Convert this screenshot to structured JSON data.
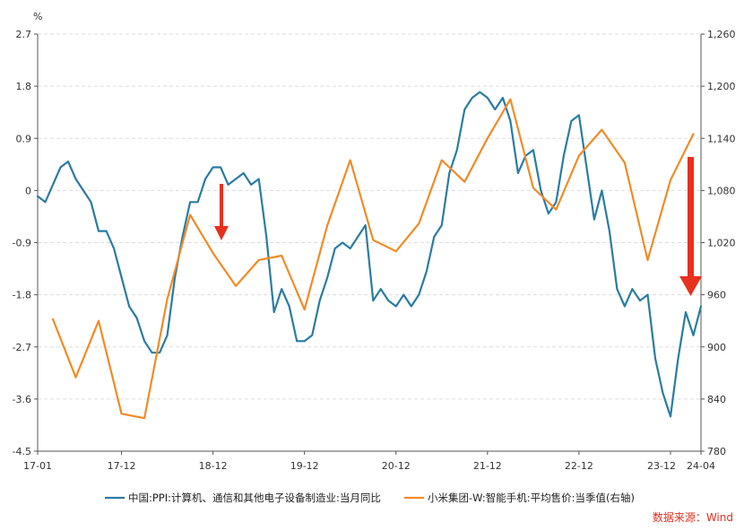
{
  "chart_data": {
    "type": "line",
    "left_unit": "%",
    "source": "数据来源：Wind",
    "x_tick_labels": [
      "17-01",
      "17-12",
      "18-12",
      "19-12",
      "20-12",
      "21-12",
      "22-12",
      "23-12",
      "24-04"
    ],
    "y_left_ticks": [
      "2.7",
      "1.8",
      "0.9",
      "0",
      "-0.9",
      "-1.8",
      "-2.7",
      "-3.6",
      "-4.5"
    ],
    "y_right_ticks": [
      "1,260",
      "1,200",
      "1,140",
      "1,080",
      "1,020",
      "960",
      "900",
      "840",
      "780"
    ],
    "ylim_left": [
      -4.5,
      2.7
    ],
    "ylim_right": [
      780,
      1260
    ],
    "colors": {
      "ppi": "#2a7ca3",
      "xiaomi": "#f18b27",
      "arrow": "#e8301e",
      "grid": "#dddddd",
      "axis": "#555555"
    },
    "series": [
      {
        "name": "中国:PPI:计算机、通信和其他电子设备制造业:当月同比",
        "axis": "left",
        "x": [
          "2017-01",
          "2017-02",
          "2017-03",
          "2017-04",
          "2017-05",
          "2017-06",
          "2017-07",
          "2017-08",
          "2017-09",
          "2017-10",
          "2017-11",
          "2017-12",
          "2018-01",
          "2018-02",
          "2018-03",
          "2018-04",
          "2018-05",
          "2018-06",
          "2018-07",
          "2018-08",
          "2018-09",
          "2018-10",
          "2018-11",
          "2018-12",
          "2019-01",
          "2019-02",
          "2019-03",
          "2019-04",
          "2019-05",
          "2019-06",
          "2019-07",
          "2019-08",
          "2019-09",
          "2019-10",
          "2019-11",
          "2019-12",
          "2020-01",
          "2020-02",
          "2020-03",
          "2020-04",
          "2020-05",
          "2020-06",
          "2020-07",
          "2020-08",
          "2020-09",
          "2020-10",
          "2020-11",
          "2020-12",
          "2021-01",
          "2021-02",
          "2021-03",
          "2021-04",
          "2021-05",
          "2021-06",
          "2021-07",
          "2021-08",
          "2021-09",
          "2021-10",
          "2021-11",
          "2021-12",
          "2022-01",
          "2022-02",
          "2022-03",
          "2022-04",
          "2022-05",
          "2022-06",
          "2022-07",
          "2022-08",
          "2022-09",
          "2022-10",
          "2022-11",
          "2022-12",
          "2023-01",
          "2023-02",
          "2023-03",
          "2023-04",
          "2023-05",
          "2023-06",
          "2023-07",
          "2023-08",
          "2023-09",
          "2023-10",
          "2023-11",
          "2023-12",
          "2024-01",
          "2024-02",
          "2024-03",
          "2024-04"
        ],
        "values": [
          -0.1,
          -0.2,
          0.1,
          0.4,
          0.5,
          0.2,
          0.0,
          -0.2,
          -0.7,
          -0.7,
          -1.0,
          -1.5,
          -2.0,
          -2.2,
          -2.6,
          -2.8,
          -2.8,
          -2.5,
          -1.5,
          -0.8,
          -0.2,
          -0.2,
          0.2,
          0.4,
          0.4,
          0.1,
          0.2,
          0.3,
          0.1,
          0.2,
          -0.8,
          -2.1,
          -1.7,
          -2.0,
          -2.6,
          -2.6,
          -2.5,
          -1.9,
          -1.5,
          -1.0,
          -0.9,
          -1.0,
          -0.8,
          -0.6,
          -1.9,
          -1.7,
          -1.9,
          -2.0,
          -1.8,
          -2.0,
          -1.8,
          -1.4,
          -0.8,
          -0.6,
          0.3,
          0.7,
          1.4,
          1.6,
          1.7,
          1.6,
          1.4,
          1.6,
          1.2,
          0.3,
          0.6,
          0.7,
          0.0,
          -0.4,
          -0.2,
          0.6,
          1.2,
          1.3,
          0.4,
          -0.5,
          0.0,
          -0.7,
          -1.7,
          -2.0,
          -1.7,
          -1.9,
          -1.8,
          -2.9,
          -3.5,
          -3.9,
          -2.9,
          -2.1,
          -2.5,
          -2.0
        ]
      },
      {
        "name": "小米集团-W:智能手机:平均售价:当季值(右轴)",
        "axis": "right",
        "x": [
          "2017-03",
          "2017-06",
          "2017-09",
          "2017-12",
          "2018-03",
          "2018-06",
          "2018-09",
          "2018-12",
          "2019-03",
          "2019-06",
          "2019-09",
          "2019-12",
          "2020-03",
          "2020-06",
          "2020-09",
          "2020-12",
          "2021-03",
          "2021-06",
          "2021-09",
          "2021-12",
          "2022-03",
          "2022-06",
          "2022-09",
          "2022-12",
          "2023-03",
          "2023-06",
          "2023-09",
          "2023-12",
          "2024-03"
        ],
        "values": [
          932,
          865,
          930,
          823,
          818,
          955,
          1052,
          1008,
          970,
          1000,
          1005,
          943,
          1040,
          1115,
          1023,
          1010,
          1042,
          1115,
          1090,
          1140,
          1185,
          1083,
          1058,
          1120,
          1150,
          1112,
          1000,
          1092,
          1145
        ]
      }
    ]
  },
  "legend": {
    "ppi_label": "中国:PPI:计算机、通信和其他电子设备制造业:当月同比",
    "xiaomi_label": "小米集团-W:智能手机:平均售价:当季值(右轴)"
  }
}
